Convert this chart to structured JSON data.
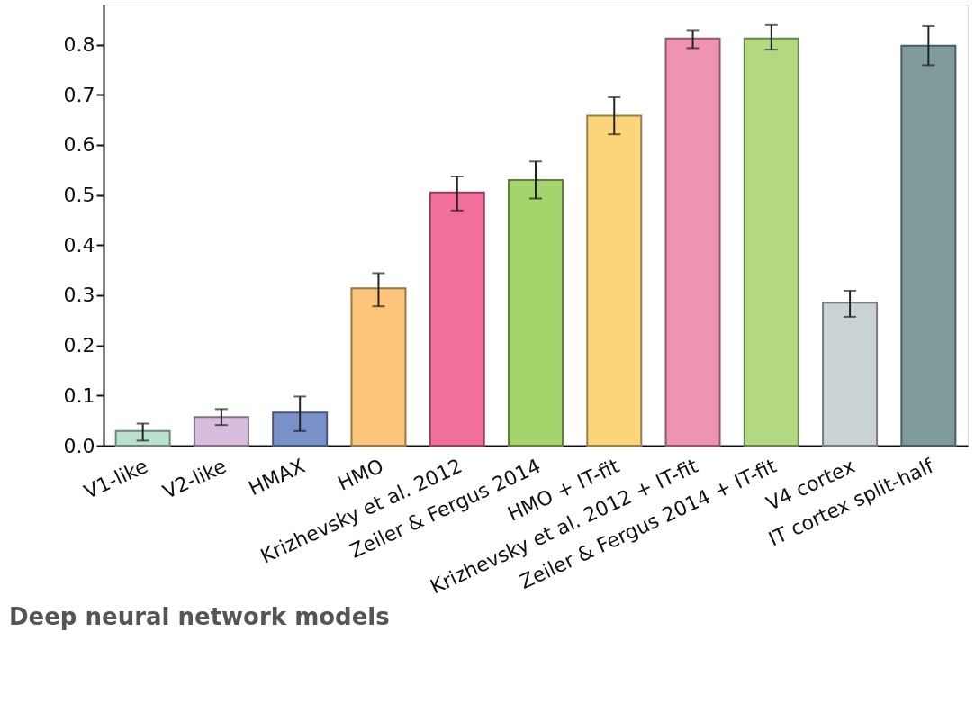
{
  "chart_data": {
    "type": "bar",
    "categories": [
      "V1-like",
      "V2-like",
      "HMAX",
      "HMO",
      "Krizhevsky et al. 2012",
      "Zeiler & Fergus 2014",
      "HMO + IT-fit",
      "Krizhevsky et al. 2012 + IT-fit",
      "Zeiler & Fergus 2014 + IT-fit",
      "V4 cortex",
      "IT cortex split-half"
    ],
    "values": [
      0.029,
      0.057,
      0.066,
      0.314,
      0.505,
      0.53,
      0.658,
      0.812,
      0.812,
      0.285,
      0.798
    ],
    "errors": [
      [
        0.01,
        0.044
      ],
      [
        0.041,
        0.073
      ],
      [
        0.029,
        0.098
      ],
      [
        0.278,
        0.344
      ],
      [
        0.469,
        0.537
      ],
      [
        0.493,
        0.567
      ],
      [
        0.621,
        0.695
      ],
      [
        0.793,
        0.829
      ],
      [
        0.79,
        0.839
      ],
      [
        0.257,
        0.309
      ],
      [
        0.759,
        0.837
      ]
    ],
    "colors": [
      "#b9e0cc",
      "#d8bddf",
      "#7891c9",
      "#fdc57a",
      "#f06f9c",
      "#a5d36c",
      "#fcd57a",
      "#ee93b3",
      "#b2d880",
      "#c9d3d6",
      "#7f9b9c"
    ],
    "ylim": [
      0,
      0.88
    ],
    "yticks": [
      {
        "value": 0,
        "label": "0.0"
      },
      0.1,
      0.2,
      0.3,
      0.4,
      0.5,
      0.6,
      0.7,
      0.8
    ],
    "grid": false,
    "annotations": [
      "Deep neural network models"
    ]
  }
}
